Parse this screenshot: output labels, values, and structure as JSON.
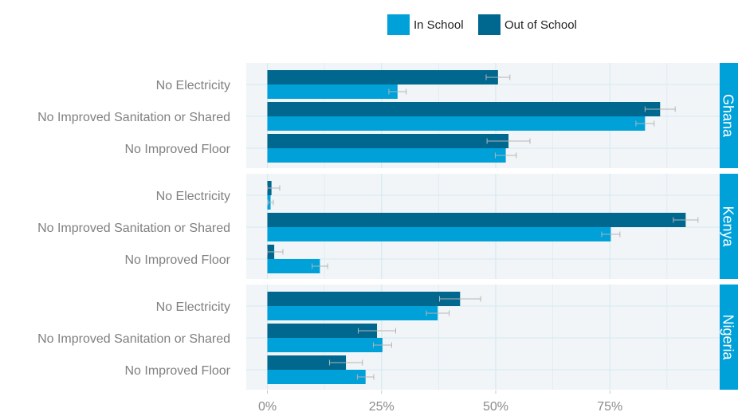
{
  "chart_data": {
    "type": "bar",
    "orientation": "horizontal",
    "grouping": "grouped",
    "facet_by": "country",
    "facets": [
      {
        "name": "Ghana",
        "categories": [
          "No Electricity",
          "No Improved Sanitation or Shared",
          "No Improved Floor"
        ],
        "series": [
          {
            "name": "Out of School",
            "values": [
              50.5,
              86.0,
              52.8
            ],
            "error": [
              2.6,
              3.3,
              4.7
            ]
          },
          {
            "name": "In School",
            "values": [
              28.5,
              82.7,
              52.2
            ],
            "error": [
              1.9,
              2.0,
              2.3
            ]
          }
        ]
      },
      {
        "name": "Kenya",
        "categories": [
          "No Electricity",
          "No Improved Sanitation or Shared",
          "No Improved Floor"
        ],
        "series": [
          {
            "name": "Out of School",
            "values": [
              0.9,
              91.6,
              1.5
            ],
            "error": [
              1.8,
              2.7,
              1.9
            ]
          },
          {
            "name": "In School",
            "values": [
              0.7,
              75.2,
              11.5
            ],
            "error": [
              0.6,
              2.0,
              1.7
            ]
          }
        ]
      },
      {
        "name": "Nigeria",
        "categories": [
          "No Electricity",
          "No Improved Sanitation or Shared",
          "No Improved Floor"
        ],
        "series": [
          {
            "name": "Out of School",
            "values": [
              42.2,
              24.0,
              17.2
            ],
            "error": [
              4.5,
              4.1,
              3.6
            ]
          },
          {
            "name": "In School",
            "values": [
              37.3,
              25.2,
              21.5
            ],
            "error": [
              2.5,
              2.0,
              1.8
            ]
          }
        ]
      }
    ],
    "x_ticks": [
      0,
      25,
      50,
      75
    ],
    "x_tick_labels": [
      "0%",
      "25%",
      "50%",
      "75%"
    ],
    "xlim": [
      0,
      99
    ],
    "legend": {
      "placement": "top",
      "entries": [
        {
          "name": "In School",
          "color": "#00A0D8"
        },
        {
          "name": "Out of School",
          "color": "#00678F"
        }
      ]
    },
    "colors": {
      "In School": "#00A0D8",
      "Out of School": "#00678F",
      "strip": "#00A0D8",
      "panel_background": "#F1F5F7",
      "gridline": "#D3E9F2",
      "error_bar": "#B5B5B5"
    },
    "grid": true
  }
}
